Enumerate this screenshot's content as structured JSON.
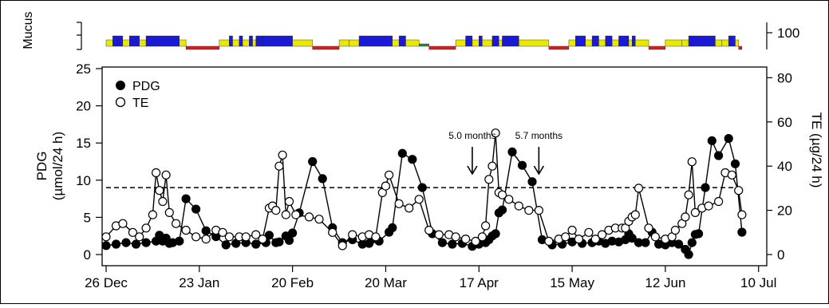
{
  "chart_data": {
    "type": "line",
    "x_tick_labels": [
      "26 Dec",
      "23 Jan",
      "20 Feb",
      "20 Mar",
      "17 Apr",
      "15 May",
      "12 Jun",
      "10 Jul"
    ],
    "y_left": {
      "label_line1": "PDG",
      "label_line2": "(µmol/24 h)",
      "ticks": [
        "0",
        "5",
        "10",
        "15",
        "20",
        "25"
      ],
      "ylim": [
        0,
        25
      ]
    },
    "y_right": {
      "label": "TE (µg/24 h)",
      "ticks": [
        "0",
        "20",
        "40",
        "60",
        "80",
        "100"
      ],
      "ylim": [
        0,
        100
      ]
    },
    "mucus_label": "Mucus",
    "legend": {
      "placement": "top-left",
      "pdg": "PDG",
      "te": "TE"
    },
    "threshold": {
      "pdg_value": 9,
      "style": "dashed"
    },
    "annotations": [
      {
        "text": "5.0 months",
        "x_day": 110
      },
      {
        "text": "5.7 months",
        "x_day": 130
      }
    ],
    "x_start_date": "26 Dec",
    "series": [
      {
        "name": "PDG",
        "axis": "left",
        "marker": "filled-circle",
        "points": [
          [
            0,
            1.2
          ],
          [
            3,
            1.4
          ],
          [
            6,
            1.6
          ],
          [
            9,
            1.4
          ],
          [
            12,
            1.6
          ],
          [
            15,
            1.8
          ],
          [
            16,
            2.6
          ],
          [
            17,
            1.8
          ],
          [
            18,
            2.2
          ],
          [
            19,
            1.5
          ],
          [
            20,
            1.6
          ],
          [
            22,
            1.8
          ],
          [
            24,
            7.5
          ],
          [
            27,
            6.1
          ],
          [
            30,
            3.2
          ],
          [
            33,
            2.4
          ],
          [
            36,
            1.3
          ],
          [
            39,
            1.5
          ],
          [
            42,
            1.6
          ],
          [
            45,
            1.4
          ],
          [
            48,
            1.6
          ],
          [
            49,
            2.6
          ],
          [
            51,
            1.6
          ],
          [
            52,
            1.7
          ],
          [
            54,
            2.5
          ],
          [
            55,
            1.9
          ],
          [
            56,
            2.9
          ],
          [
            58,
            5.6
          ],
          [
            62,
            12.5
          ],
          [
            65,
            10.2
          ],
          [
            68,
            3.6
          ],
          [
            71,
            1.6
          ],
          [
            74,
            2.0
          ],
          [
            77,
            1.4
          ],
          [
            79,
            1.5
          ],
          [
            80,
            2.1
          ],
          [
            82,
            1.8
          ],
          [
            85,
            3.0
          ],
          [
            86,
            3.6
          ],
          [
            89,
            13.6
          ],
          [
            92,
            12.8
          ],
          [
            95,
            9.0
          ],
          [
            98,
            2.8
          ],
          [
            101,
            1.6
          ],
          [
            104,
            1.4
          ],
          [
            107,
            1.5
          ],
          [
            110,
            1.1
          ],
          [
            112,
            1.4
          ],
          [
            114,
            1.6
          ],
          [
            115,
            2.0
          ],
          [
            116,
            2.5
          ],
          [
            117,
            2.8
          ],
          [
            118,
            5.6
          ],
          [
            119,
            6.0
          ],
          [
            122,
            13.8
          ],
          [
            125,
            12.0
          ],
          [
            128,
            9.8
          ],
          [
            131,
            2.0
          ],
          [
            134,
            1.3
          ],
          [
            137,
            1.4
          ],
          [
            140,
            1.7
          ],
          [
            143,
            1.5
          ],
          [
            146,
            1.6
          ],
          [
            148,
            1.8
          ],
          [
            150,
            1.5
          ],
          [
            152,
            1.8
          ],
          [
            154,
            1.7
          ],
          [
            156,
            2.0
          ],
          [
            157,
            2.8
          ],
          [
            158,
            2.2
          ],
          [
            160,
            1.6
          ],
          [
            162,
            1.6
          ],
          [
            164,
            3.0
          ],
          [
            166,
            1.4
          ],
          [
            168,
            1.3
          ],
          [
            170,
            1.6
          ],
          [
            172,
            1.4
          ],
          [
            174,
            0.7
          ],
          [
            175,
            0.0
          ],
          [
            176,
            1.6
          ],
          [
            177,
            2.7
          ],
          [
            178,
            2.8
          ],
          [
            180,
            9.0
          ],
          [
            182,
            15.3
          ],
          [
            184,
            13.3
          ],
          [
            187,
            15.6
          ],
          [
            189,
            12.2
          ],
          [
            191,
            3.0
          ]
        ]
      },
      {
        "name": "TE",
        "axis": "right",
        "marker": "open-circle",
        "points": [
          [
            0,
            8
          ],
          [
            3,
            13
          ],
          [
            5,
            14
          ],
          [
            8,
            10
          ],
          [
            10,
            8
          ],
          [
            12,
            12
          ],
          [
            14,
            18
          ],
          [
            15,
            37
          ],
          [
            16,
            29
          ],
          [
            17,
            24
          ],
          [
            18,
            36
          ],
          [
            19,
            19
          ],
          [
            21,
            14
          ],
          [
            24,
            11
          ],
          [
            27,
            8
          ],
          [
            30,
            7
          ],
          [
            33,
            11
          ],
          [
            35,
            10
          ],
          [
            37,
            8
          ],
          [
            40,
            8
          ],
          [
            42,
            8
          ],
          [
            45,
            9
          ],
          [
            47,
            7
          ],
          [
            49,
            21
          ],
          [
            50,
            22
          ],
          [
            51,
            20
          ],
          [
            52,
            40
          ],
          [
            53,
            45
          ],
          [
            54,
            18
          ],
          [
            55,
            24
          ],
          [
            57,
            18
          ],
          [
            61,
            17
          ],
          [
            64,
            16
          ],
          [
            68,
            10
          ],
          [
            71,
            4
          ],
          [
            74,
            9
          ],
          [
            77,
            8
          ],
          [
            79,
            9
          ],
          [
            81,
            8
          ],
          [
            83,
            28
          ],
          [
            84,
            31
          ],
          [
            85,
            36
          ],
          [
            88,
            23
          ],
          [
            91,
            21
          ],
          [
            94,
            25
          ],
          [
            97,
            11
          ],
          [
            100,
            9
          ],
          [
            103,
            9
          ],
          [
            105,
            8
          ],
          [
            108,
            7
          ],
          [
            111,
            6
          ],
          [
            113,
            8
          ],
          [
            114,
            13
          ],
          [
            115,
            34
          ],
          [
            116,
            40
          ],
          [
            117,
            55
          ],
          [
            118,
            28
          ],
          [
            119,
            27
          ],
          [
            121,
            25
          ],
          [
            124,
            22
          ],
          [
            127,
            20
          ],
          [
            130,
            20
          ],
          [
            133,
            6
          ],
          [
            136,
            7
          ],
          [
            138,
            8
          ],
          [
            140,
            11
          ],
          [
            142,
            7
          ],
          [
            145,
            10
          ],
          [
            147,
            7
          ],
          [
            149,
            9
          ],
          [
            151,
            11
          ],
          [
            153,
            12
          ],
          [
            155,
            12
          ],
          [
            156,
            12
          ],
          [
            157,
            15
          ],
          [
            158,
            17
          ],
          [
            159,
            18
          ],
          [
            160,
            30
          ],
          [
            163,
            12
          ],
          [
            165,
            8
          ],
          [
            168,
            7
          ],
          [
            170,
            8
          ],
          [
            171,
            11
          ],
          [
            173,
            14
          ],
          [
            174,
            17
          ],
          [
            175,
            27
          ],
          [
            176,
            42
          ],
          [
            177,
            19
          ],
          [
            179,
            21
          ],
          [
            181,
            22
          ],
          [
            184,
            24
          ],
          [
            186,
            37
          ],
          [
            188,
            36
          ],
          [
            190,
            29
          ],
          [
            191,
            18
          ]
        ]
      }
    ],
    "mucus_strip": {
      "legend": "categorical scores shown as colored bars above the plot",
      "colors": {
        "high": "#1a1ad6",
        "medium": "#e8e800",
        "low": "#d42020",
        "none": "#2e8b2e"
      },
      "segments": [
        [
          0,
          2,
          "medium"
        ],
        [
          2,
          5,
          "high"
        ],
        [
          5,
          7,
          "medium"
        ],
        [
          7,
          10,
          "high"
        ],
        [
          10,
          12,
          "medium"
        ],
        [
          12,
          22,
          "high"
        ],
        [
          22,
          24,
          "medium"
        ],
        [
          24,
          34,
          "low"
        ],
        [
          34,
          37,
          "medium"
        ],
        [
          37,
          38,
          "high"
        ],
        [
          38,
          40,
          "medium"
        ],
        [
          40,
          41,
          "high"
        ],
        [
          41,
          43,
          "medium"
        ],
        [
          43,
          44,
          "high"
        ],
        [
          44,
          45,
          "medium"
        ],
        [
          45,
          47,
          "high"
        ],
        [
          47,
          56,
          "high"
        ],
        [
          56,
          62,
          "medium"
        ],
        [
          62,
          70,
          "low"
        ],
        [
          70,
          73,
          "medium"
        ],
        [
          73,
          76,
          "medium"
        ],
        [
          76,
          86,
          "high"
        ],
        [
          86,
          88,
          "medium"
        ],
        [
          88,
          90,
          "high"
        ],
        [
          90,
          94,
          "medium"
        ],
        [
          94,
          97,
          "none"
        ],
        [
          97,
          105,
          "low"
        ],
        [
          105,
          108,
          "medium"
        ],
        [
          108,
          110,
          "high"
        ],
        [
          110,
          112,
          "medium"
        ],
        [
          112,
          113,
          "high"
        ],
        [
          113,
          116,
          "medium"
        ],
        [
          116,
          118,
          "high"
        ],
        [
          118,
          119,
          "medium"
        ],
        [
          119,
          124,
          "high"
        ],
        [
          124,
          133,
          "medium"
        ],
        [
          133,
          139,
          "low"
        ],
        [
          139,
          141,
          "medium"
        ],
        [
          141,
          144,
          "high"
        ],
        [
          144,
          146,
          "medium"
        ],
        [
          146,
          148,
          "high"
        ],
        [
          148,
          150,
          "medium"
        ],
        [
          150,
          152,
          "high"
        ],
        [
          152,
          154,
          "medium"
        ],
        [
          154,
          157,
          "high"
        ],
        [
          157,
          158,
          "medium"
        ],
        [
          158,
          159,
          "high"
        ],
        [
          159,
          163,
          "medium"
        ],
        [
          163,
          168,
          "low"
        ],
        [
          168,
          173,
          "medium"
        ],
        [
          173,
          175,
          "medium"
        ],
        [
          175,
          176,
          "high"
        ],
        [
          176,
          183,
          "high"
        ],
        [
          183,
          185,
          "medium"
        ],
        [
          185,
          187,
          "medium"
        ],
        [
          187,
          189,
          "high"
        ],
        [
          189,
          190,
          "medium"
        ],
        [
          190,
          191,
          "low"
        ]
      ]
    }
  }
}
